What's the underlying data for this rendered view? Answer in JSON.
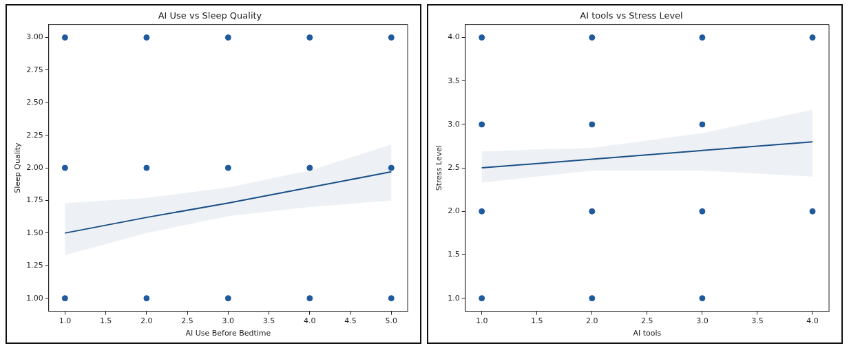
{
  "chart_data": [
    {
      "type": "scatter",
      "title": "AI Use vs Sleep Quality",
      "xlabel": "AI Use Before Bedtime",
      "ylabel": "Sleep Quality",
      "xlim": [
        0.8,
        5.2
      ],
      "ylim": [
        0.9,
        3.1
      ],
      "legend": false,
      "grid": false,
      "xticks": [
        {
          "value": 1,
          "label": "1.0"
        },
        {
          "value": 1.5,
          "label": "1.5"
        },
        {
          "value": 2,
          "label": "2.0"
        },
        {
          "value": 2.5,
          "label": "2.5"
        },
        {
          "value": 3,
          "label": "3.0"
        },
        {
          "value": 3.5,
          "label": "3.5"
        },
        {
          "value": 4,
          "label": "4.0"
        },
        {
          "value": 4.5,
          "label": "4.5"
        },
        {
          "value": 5,
          "label": "5.0"
        }
      ],
      "yticks": [
        {
          "value": 1,
          "label": "1.00"
        },
        {
          "value": 1.25,
          "label": "1.25"
        },
        {
          "value": 1.5,
          "label": "1.50"
        },
        {
          "value": 1.75,
          "label": "1.75"
        },
        {
          "value": 2,
          "label": "2.00"
        },
        {
          "value": 2.25,
          "label": "2.25"
        },
        {
          "value": 2.5,
          "label": "2.50"
        },
        {
          "value": 2.75,
          "label": "2.75"
        },
        {
          "value": 3,
          "label": "3.00"
        }
      ],
      "series": [
        {
          "marker": "circle",
          "color": "#1f5a9e",
          "x": [
            1,
            2,
            3,
            4,
            5,
            1,
            2,
            3,
            4,
            5,
            1,
            2,
            3,
            4,
            5
          ],
          "values": [
            1,
            1,
            1,
            1,
            1,
            2,
            2,
            2,
            2,
            2,
            3,
            3,
            3,
            3,
            3
          ]
        },
        {
          "type": "line",
          "color": "#1a4f86",
          "x": [
            1,
            2,
            3,
            4,
            5
          ],
          "values": [
            1.5,
            1.62,
            1.73,
            1.85,
            1.97
          ],
          "lower": [
            1.33,
            1.5,
            1.63,
            1.7,
            1.75
          ],
          "upper": [
            1.73,
            1.77,
            1.85,
            1.98,
            2.18
          ]
        }
      ]
    },
    {
      "type": "scatter",
      "title": "AI tools vs Stress Level",
      "xlabel": "AI tools",
      "ylabel": "Stress Level",
      "xlim": [
        0.85,
        4.15
      ],
      "ylim": [
        0.85,
        4.15
      ],
      "legend": false,
      "grid": false,
      "xticks": [
        {
          "value": 1,
          "label": "1.0"
        },
        {
          "value": 1.5,
          "label": "1.5"
        },
        {
          "value": 2,
          "label": "2.0"
        },
        {
          "value": 2.5,
          "label": "2.5"
        },
        {
          "value": 3,
          "label": "3.0"
        },
        {
          "value": 3.5,
          "label": "3.5"
        },
        {
          "value": 4,
          "label": "4.0"
        }
      ],
      "yticks": [
        {
          "value": 1,
          "label": "1.0"
        },
        {
          "value": 1.5,
          "label": "1.5"
        },
        {
          "value": 2,
          "label": "2.0"
        },
        {
          "value": 2.5,
          "label": "2.5"
        },
        {
          "value": 3,
          "label": "3.0"
        },
        {
          "value": 3.5,
          "label": "3.5"
        },
        {
          "value": 4,
          "label": "4.0"
        }
      ],
      "series": [
        {
          "marker": "circle",
          "color": "#1f5a9e",
          "x": [
            1,
            2,
            3,
            1,
            2,
            3,
            4,
            1,
            2,
            3,
            1,
            2,
            3,
            4
          ],
          "values": [
            1,
            1,
            1,
            2,
            2,
            2,
            2,
            3,
            3,
            3,
            4,
            4,
            4,
            4
          ]
        },
        {
          "type": "line",
          "color": "#1a4f86",
          "x": [
            1,
            2,
            3,
            4
          ],
          "values": [
            2.5,
            2.6,
            2.7,
            2.8
          ],
          "lower": [
            2.33,
            2.47,
            2.47,
            2.4
          ],
          "upper": [
            2.69,
            2.73,
            2.9,
            3.17
          ]
        }
      ]
    }
  ]
}
